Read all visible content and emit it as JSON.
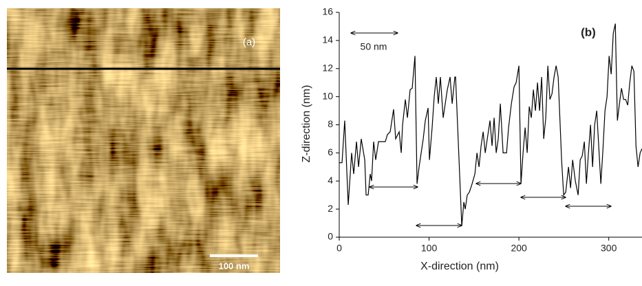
{
  "chart_data": [
    {
      "type": "image",
      "label": "(a)",
      "scale_bar": "100 nm"
    },
    {
      "type": "line",
      "panel_label": "(b)",
      "scale_label": "50 nm",
      "x_label": "X-direction (nm)",
      "y_label": "Z-direction (nm)",
      "xlim": [
        0,
        337
      ],
      "ylim": [
        0,
        16
      ],
      "xticks": [
        0,
        100,
        200,
        300
      ],
      "yticks": [
        0,
        2,
        4,
        6,
        8,
        10,
        12,
        14,
        16
      ],
      "series": [
        {
          "color": "#000000",
          "x": [
            0,
            3.1,
            6.1,
            10,
            13.8,
            16.1,
            19.2,
            21.5,
            24.5,
            28.4,
            29.9,
            32.2,
            34.5,
            36,
            38.3,
            40.6,
            43.7,
            51.3,
            53.6,
            56.7,
            60.5,
            62.8,
            66.7,
            69,
            70.5,
            73.6,
            75.9,
            78.9,
            81.2,
            84.3,
            86.6,
            88.9,
            91.2,
            93.5,
            95.8,
            98.9,
            100.4,
            103.4,
            105.7,
            108,
            110.3,
            112.6,
            115.7,
            118,
            120.3,
            123.4,
            125.7,
            128.7,
            129.5,
            136.4,
            138.7,
            140.2,
            142.5,
            144.8,
            147.9,
            151,
            153.3,
            155.6,
            157.9,
            160.2,
            162.5,
            164.8,
            167.8,
            170.1,
            172.4,
            174.7,
            177,
            179.3,
            182.4,
            186.2,
            188.5,
            191.6,
            194.6,
            196.9,
            200,
            202.3,
            204.6,
            206.9,
            209.2,
            211.5,
            213.8,
            216.1,
            218.4,
            220.7,
            223,
            225.3,
            227.6,
            229.9,
            232.2,
            234.5,
            236.8,
            239.1,
            241.4,
            243.7,
            247.5,
            249.8,
            252.1,
            255.2,
            257.5,
            259.8,
            262.8,
            265.9,
            268.2,
            270.5,
            272.8,
            275.1,
            277.4,
            279.7,
            282,
            284.3,
            286.6,
            288.9,
            291.2,
            293.5,
            295.8,
            298.1,
            300.4,
            302.7,
            305,
            307.3,
            309.6,
            311.9,
            314.2,
            316.5,
            318.8,
            321.1,
            323.4,
            325.7,
            328,
            330.3,
            332.6,
            334.9,
            337
          ],
          "values": [
            5.3,
            5.3,
            8.3,
            2.3,
            6,
            4.5,
            6.8,
            5,
            7,
            5.5,
            3,
            3,
            4.5,
            4,
            6.8,
            5.5,
            6.8,
            6.8,
            7.3,
            7.5,
            9.1,
            7,
            7.5,
            6,
            8,
            9.8,
            8.5,
            10.5,
            10.6,
            12.9,
            3.8,
            5,
            6,
            7,
            8.3,
            9.2,
            5.5,
            7.8,
            10,
            11.4,
            9.5,
            11.4,
            8.5,
            9.5,
            10.5,
            11.4,
            9.5,
            11.4,
            11.4,
            0.8,
            2.5,
            2,
            3,
            3.2,
            3.8,
            4.5,
            6,
            5,
            6.5,
            7.5,
            6,
            7,
            8.3,
            6.5,
            8.5,
            6,
            7,
            9.5,
            6,
            6,
            7.8,
            9.5,
            10.7,
            11,
            12.2,
            3.8,
            6,
            7.8,
            6,
            9.3,
            8.5,
            10.5,
            9,
            11,
            9,
            11.4,
            7,
            8.5,
            12.2,
            9.8,
            10.2,
            11.4,
            12.2,
            11.4,
            5.5,
            3,
            3.2,
            5,
            3.5,
            5.5,
            4,
            3,
            5.5,
            5.8,
            6.8,
            3.8,
            6,
            8,
            5,
            8,
            9,
            6.4,
            3.8,
            6.2,
            9,
            10,
            12.9,
            11.6,
            14.5,
            15.2,
            8.3,
            9.5,
            10.6,
            9.8,
            9.8,
            9.4,
            11,
            12.2,
            11.8,
            6.5,
            5,
            6,
            6.3
          ]
        }
      ]
    }
  ]
}
